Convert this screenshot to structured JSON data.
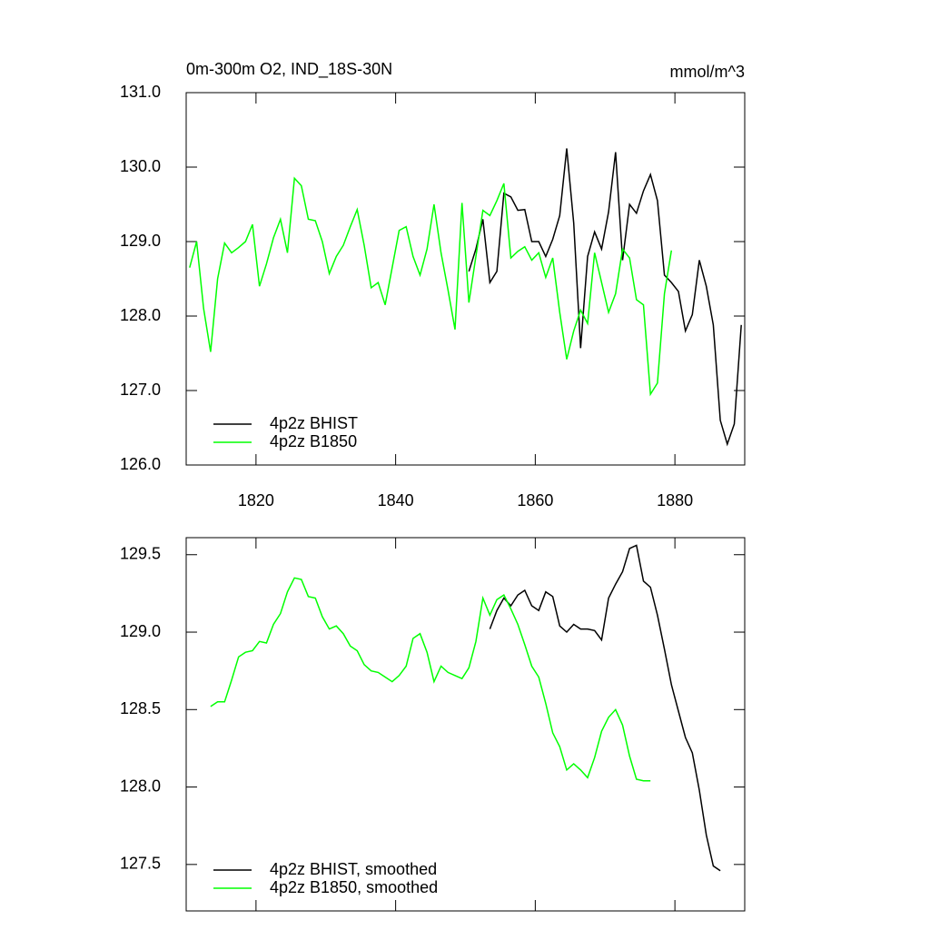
{
  "chart_data": [
    {
      "type": "line",
      "title": "0m-300m O2, IND_18S-30N",
      "units": "mmol/m^3",
      "xlim": [
        1810,
        1890
      ],
      "xticks": [
        1820,
        1840,
        1860,
        1880
      ],
      "ylim": [
        126,
        131
      ],
      "yticks": [
        {
          "value": 126,
          "label": "126.0"
        },
        {
          "value": 127,
          "label": "127.0"
        },
        {
          "value": 128,
          "label": "128.0"
        },
        {
          "value": 129,
          "label": "129.0"
        },
        {
          "value": 130,
          "label": "130.0"
        },
        {
          "value": 131,
          "label": "131.0"
        }
      ],
      "legend": "lower left",
      "series": [
        {
          "name": "4p2z BHIST",
          "color": "#000000",
          "x": [
            1850.5,
            1851.5,
            1852.5,
            1853.5,
            1854.5,
            1855.5,
            1856.5,
            1857.5,
            1858.5,
            1859.5,
            1860.5,
            1861.5,
            1862.5,
            1863.5,
            1864.5,
            1865.5,
            1866.5,
            1867.5,
            1868.5,
            1869.5,
            1870.5,
            1871.5,
            1872.5,
            1873.5,
            1874.5,
            1875.5,
            1876.5,
            1877.5,
            1878.5,
            1879.5,
            1880.5,
            1881.5,
            1882.5,
            1883.5,
            1884.5,
            1885.5,
            1886.5,
            1887.5,
            1888.5,
            1889.5
          ],
          "values": [
            128.6,
            128.9,
            129.3,
            128.45,
            128.6,
            129.65,
            129.6,
            129.42,
            129.43,
            129.0,
            129.0,
            128.8,
            129.03,
            129.35,
            130.25,
            129.25,
            127.57,
            128.8,
            129.13,
            128.9,
            129.4,
            130.2,
            128.75,
            129.5,
            129.38,
            129.68,
            129.9,
            129.55,
            128.55,
            128.45,
            128.33,
            127.8,
            128.02,
            128.75,
            128.4,
            127.88,
            126.6,
            126.28,
            126.55,
            127.88
          ]
        },
        {
          "name": "4p2z B1850",
          "color": "#00ff00",
          "x": [
            1810.5,
            1811.5,
            1812.5,
            1813.5,
            1814.5,
            1815.5,
            1816.5,
            1817.5,
            1818.5,
            1819.5,
            1820.5,
            1821.5,
            1822.5,
            1823.5,
            1824.5,
            1825.5,
            1826.5,
            1827.5,
            1828.5,
            1829.5,
            1830.5,
            1831.5,
            1832.5,
            1833.5,
            1834.5,
            1835.5,
            1836.5,
            1837.5,
            1838.5,
            1839.5,
            1840.5,
            1841.5,
            1842.5,
            1843.5,
            1844.5,
            1845.5,
            1846.5,
            1847.5,
            1848.5,
            1849.5,
            1850.5,
            1851.5,
            1852.5,
            1853.5,
            1854.5,
            1855.5,
            1856.5,
            1857.5,
            1858.5,
            1859.5,
            1860.5,
            1861.5,
            1862.5,
            1863.5,
            1864.5,
            1865.5,
            1866.5,
            1867.5,
            1868.5,
            1869.5,
            1870.5,
            1871.5,
            1872.5,
            1873.5,
            1874.5,
            1875.5,
            1876.5,
            1877.5,
            1878.5,
            1879.5
          ],
          "values": [
            128.65,
            129.0,
            128.1,
            127.52,
            128.5,
            128.98,
            128.85,
            128.92,
            129.0,
            129.23,
            128.4,
            128.7,
            129.05,
            129.3,
            128.85,
            129.85,
            129.75,
            129.3,
            129.28,
            129.0,
            128.57,
            128.8,
            128.95,
            129.2,
            129.43,
            128.95,
            128.38,
            128.45,
            128.15,
            128.65,
            129.15,
            129.2,
            128.8,
            128.55,
            128.9,
            129.5,
            128.85,
            128.35,
            127.82,
            129.52,
            128.18,
            128.8,
            129.42,
            129.35,
            129.55,
            129.78,
            128.78,
            128.87,
            128.93,
            128.75,
            128.85,
            128.52,
            128.78,
            128.05,
            127.42,
            127.8,
            128.08,
            127.9,
            128.85,
            128.45,
            128.05,
            128.3,
            128.9,
            128.78,
            128.22,
            128.15,
            126.95,
            127.1,
            128.3,
            128.88
          ]
        }
      ]
    },
    {
      "type": "line",
      "xlim": [
        1810,
        1890
      ],
      "xticks": [
        1820,
        1840,
        1860,
        1880
      ],
      "ylim": [
        127.2,
        129.61
      ],
      "yticks": [
        127.5,
        {
          "value": 128,
          "label": "128.0"
        },
        128.5,
        {
          "value": 129,
          "label": "129.0"
        },
        129.5
      ],
      "legend": "lower left",
      "series": [
        {
          "name": "4p2z BHIST, smoothed",
          "color": "#000000",
          "x": [
            1853.5,
            1854.5,
            1855.5,
            1856.5,
            1857.5,
            1858.5,
            1859.5,
            1860.5,
            1861.5,
            1862.5,
            1863.5,
            1864.5,
            1865.5,
            1866.5,
            1867.5,
            1868.5,
            1869.5,
            1870.5,
            1871.5,
            1872.5,
            1873.5,
            1874.5,
            1875.5,
            1876.5,
            1877.5,
            1878.5,
            1879.5,
            1880.5,
            1881.5,
            1882.5,
            1883.5,
            1884.5,
            1885.5,
            1886.5
          ],
          "values": [
            129.02,
            129.14,
            129.22,
            129.17,
            129.24,
            129.27,
            129.17,
            129.14,
            129.26,
            129.23,
            129.04,
            129.0,
            129.05,
            129.02,
            129.02,
            129.01,
            128.95,
            129.22,
            129.31,
            129.39,
            129.54,
            129.56,
            129.33,
            129.29,
            129.11,
            128.89,
            128.66,
            128.49,
            128.32,
            128.22,
            127.98,
            127.69,
            127.49,
            127.46
          ]
        },
        {
          "name": "4p2z B1850, smoothed",
          "color": "#00ff00",
          "x": [
            1813.5,
            1814.5,
            1815.5,
            1816.5,
            1817.5,
            1818.5,
            1819.5,
            1820.5,
            1821.5,
            1822.5,
            1823.5,
            1824.5,
            1825.5,
            1826.5,
            1827.5,
            1828.5,
            1829.5,
            1830.5,
            1831.5,
            1832.5,
            1833.5,
            1834.5,
            1835.5,
            1836.5,
            1837.5,
            1838.5,
            1839.5,
            1840.5,
            1841.5,
            1842.5,
            1843.5,
            1844.5,
            1845.5,
            1846.5,
            1847.5,
            1848.5,
            1849.5,
            1850.5,
            1851.5,
            1852.5,
            1853.5,
            1854.5,
            1855.5,
            1856.5,
            1857.5,
            1858.5,
            1859.5,
            1860.5,
            1861.5,
            1862.5,
            1863.5,
            1864.5,
            1865.5,
            1866.5,
            1867.5,
            1868.5,
            1869.5,
            1870.5,
            1871.5,
            1872.5,
            1873.5,
            1874.5,
            1875.5,
            1876.5
          ],
          "values": [
            128.52,
            128.55,
            128.55,
            128.69,
            128.84,
            128.87,
            128.88,
            128.94,
            128.93,
            129.05,
            129.12,
            129.26,
            129.35,
            129.34,
            129.23,
            129.22,
            129.1,
            129.02,
            129.04,
            128.99,
            128.91,
            128.88,
            128.79,
            128.75,
            128.74,
            128.71,
            128.68,
            128.72,
            128.78,
            128.96,
            128.99,
            128.87,
            128.68,
            128.78,
            128.74,
            128.72,
            128.7,
            128.77,
            128.94,
            129.22,
            129.11,
            129.21,
            129.24,
            129.15,
            129.05,
            128.92,
            128.78,
            128.71,
            128.54,
            128.35,
            128.26,
            128.11,
            128.15,
            128.11,
            128.06,
            128.19,
            128.36,
            128.45,
            128.5,
            128.4,
            128.2,
            128.05,
            128.04,
            128.04
          ]
        }
      ]
    }
  ]
}
